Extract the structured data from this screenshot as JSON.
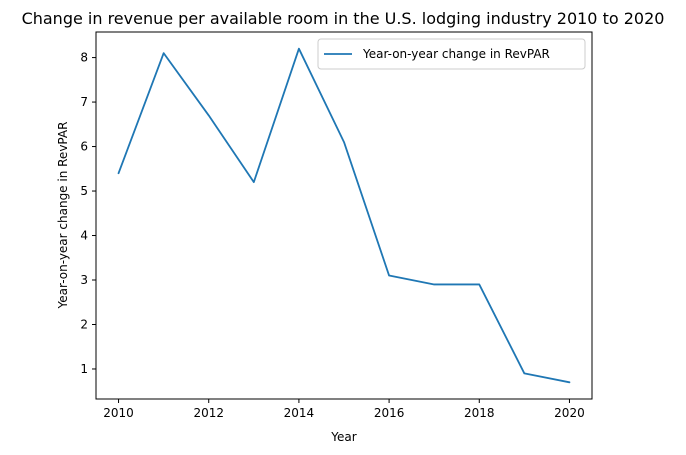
{
  "chart_data": {
    "type": "line",
    "title": "Change in revenue per available room in the U.S. lodging industry 2010 to 2020",
    "xlabel": "Year",
    "ylabel": "Year-on-year change in RevPAR",
    "x": [
      2010,
      2011,
      2012,
      2013,
      2014,
      2015,
      2016,
      2017,
      2018,
      2019,
      2020
    ],
    "series": [
      {
        "name": "Year-on-year change in RevPAR",
        "color": "#1f77b4",
        "values": [
          5.4,
          8.1,
          6.7,
          5.2,
          8.2,
          6.1,
          3.1,
          2.9,
          2.9,
          0.9,
          0.7
        ]
      }
    ],
    "xlim": [
      2009.5,
      2020.5
    ],
    "ylim": [
      0.325,
      8.575
    ],
    "xticks": [
      2010,
      2012,
      2014,
      2016,
      2018,
      2020
    ],
    "yticks": [
      1,
      2,
      3,
      4,
      5,
      6,
      7,
      8
    ],
    "grid": false,
    "legend_position": "top-right"
  }
}
